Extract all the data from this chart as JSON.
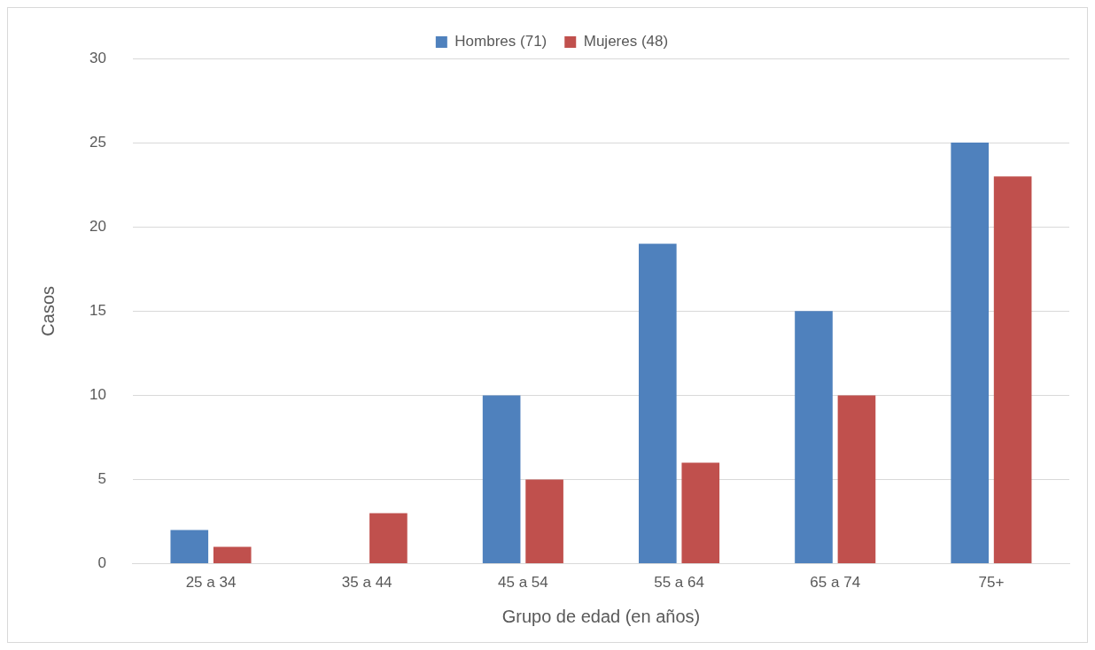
{
  "chart_data": {
    "type": "bar",
    "xlabel": "Grupo de edad (en años)",
    "ylabel": "Casos",
    "categories": [
      "25 a 34",
      "35 a 44",
      "45 a 54",
      "55 a 64",
      "65 a 74",
      "75+"
    ],
    "series": [
      {
        "name": "Hombres (71)",
        "color": "#4f81bd",
        "values": [
          2,
          0,
          10,
          19,
          15,
          25
        ]
      },
      {
        "name": "Mujeres (48)",
        "color": "#c0504d",
        "values": [
          1,
          3,
          5,
          6,
          10,
          23
        ]
      }
    ],
    "ylim": [
      0,
      30
    ],
    "yticks": [
      0,
      5,
      10,
      15,
      20,
      25,
      30
    ],
    "grid": "y",
    "legend": "top"
  }
}
